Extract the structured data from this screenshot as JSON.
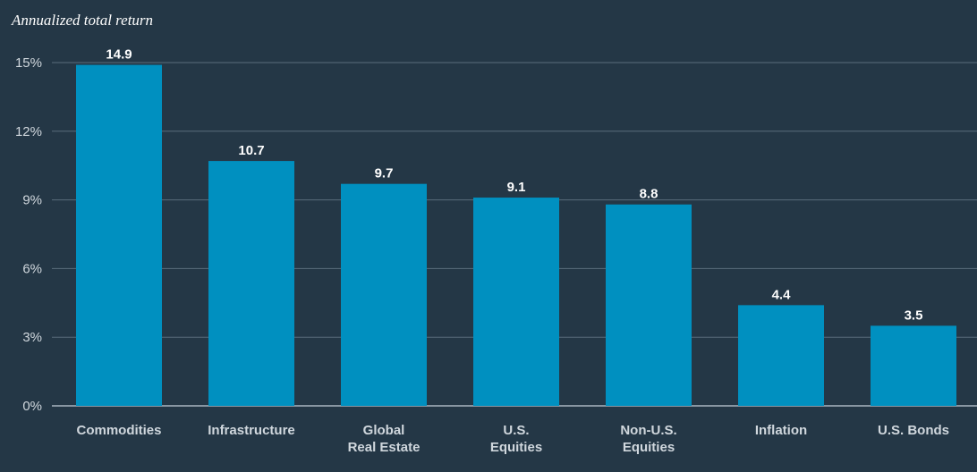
{
  "chart_data": {
    "type": "bar",
    "ylabel": "Annualized total return",
    "ylim": [
      0,
      15
    ],
    "yticks": [
      0,
      3,
      6,
      9,
      12,
      15
    ],
    "ytick_suffix": "%",
    "grid": true,
    "categories": [
      [
        "Commodities"
      ],
      [
        "Infrastructure"
      ],
      [
        "Global",
        "Real Estate"
      ],
      [
        "U.S.",
        "Equities"
      ],
      [
        "Non-U.S.",
        "Equities"
      ],
      [
        "Inflation"
      ],
      [
        "U.S. Bonds"
      ]
    ],
    "values": [
      14.9,
      10.7,
      9.7,
      9.1,
      8.8,
      4.4,
      3.5
    ],
    "value_labels": [
      "14.9",
      "10.7",
      "9.7",
      "9.1",
      "8.8",
      "4.4",
      "3.5"
    ],
    "bar_color": "#0090c0"
  }
}
